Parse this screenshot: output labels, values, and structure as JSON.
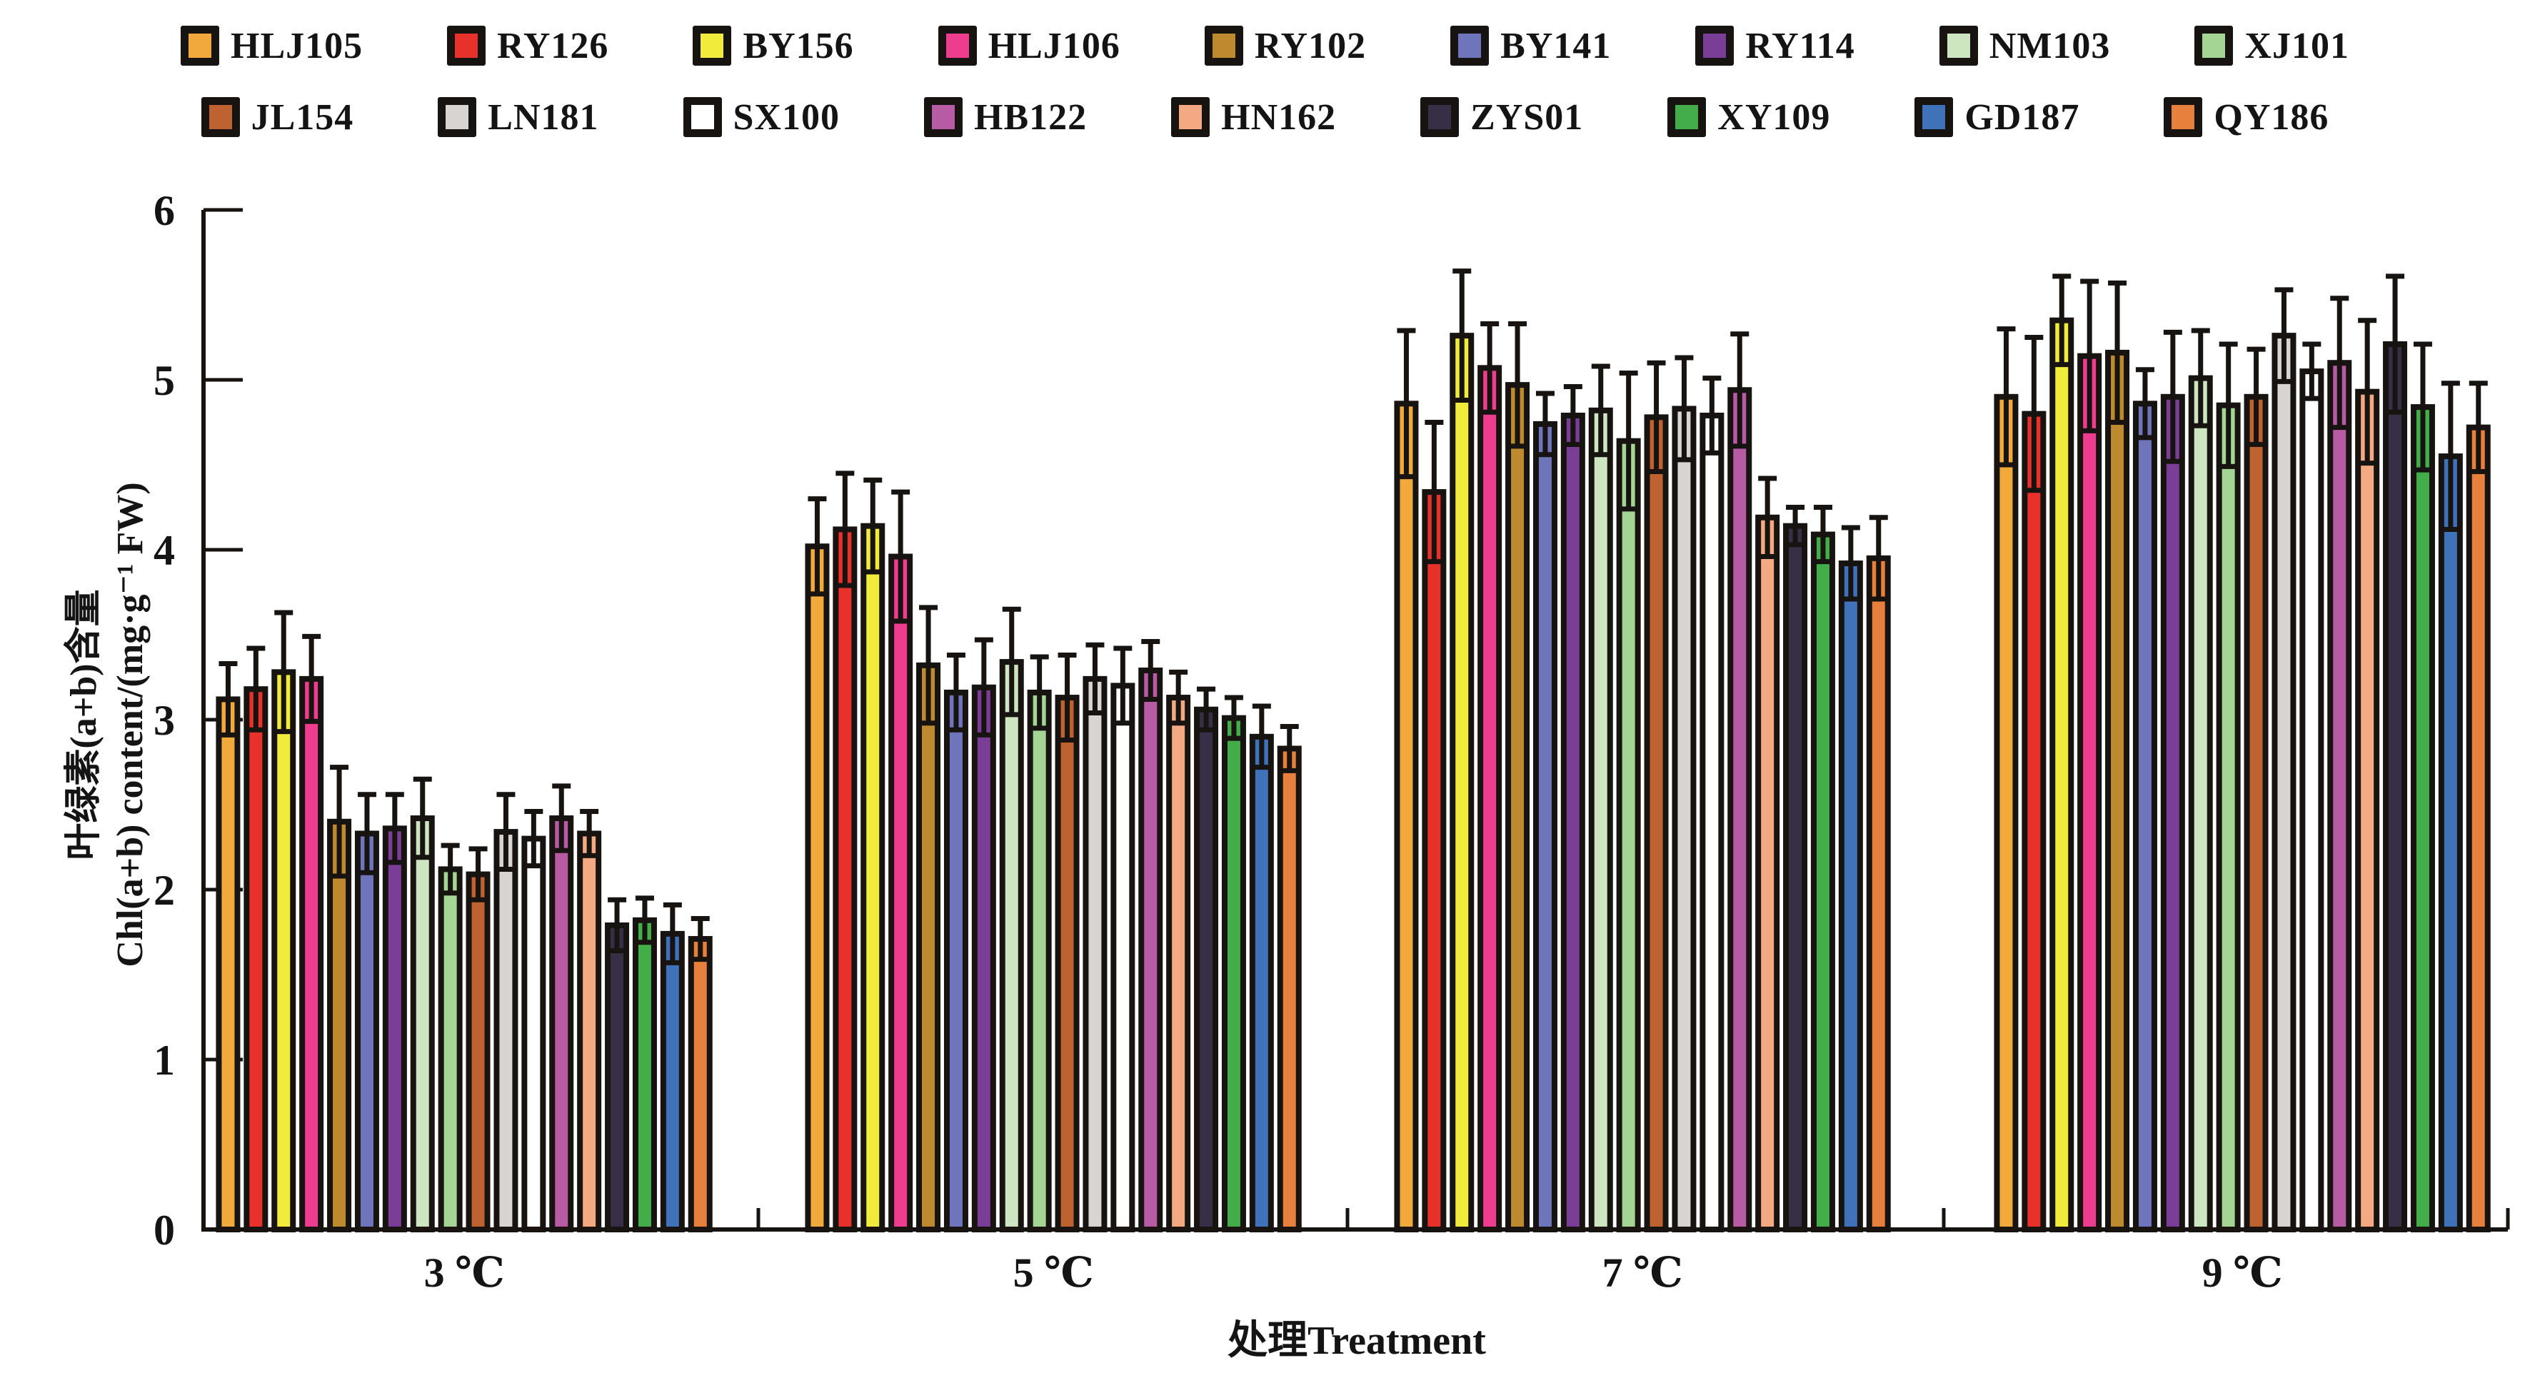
{
  "figure": {
    "background": "#FFFFFF",
    "ink": "#171310"
  },
  "legend": {
    "rows": [
      [
        "HLJ105",
        "RY126",
        "BY156",
        "HLJ106",
        "RY102",
        "BY141",
        "RY114",
        "NM103",
        "XJ101"
      ],
      [
        "JL154",
        "LN181",
        "SX100",
        "HB122",
        "HN162",
        "ZYS01",
        "XY109",
        "GD187",
        "QY186"
      ]
    ]
  },
  "axes": {
    "y_title_cn": "叶绿素(a+b)含量",
    "y_title_en": "Chl(a+b) content/(mg·g⁻¹ FW)",
    "x_title": "处理Treatment"
  },
  "chart_data": {
    "type": "bar",
    "title": "",
    "xlabel": "处理Treatment",
    "ylabel": "叶绿素(a+b)含量 Chl(a+b) content/(mg·g⁻¹ FW)",
    "categories": [
      "3 ℃",
      "5 ℃",
      "7 ℃",
      "9 ℃"
    ],
    "ylim": [
      0,
      6
    ],
    "yticks": [
      0,
      1,
      2,
      3,
      4,
      5,
      6
    ],
    "grid": false,
    "legend_position": "top",
    "error_bars": "symmetric",
    "series": [
      {
        "name": "HLJ105",
        "color": "#F2A93B",
        "values": [
          3.12,
          4.02,
          4.86,
          4.9
        ],
        "errors": [
          0.21,
          0.28,
          0.43,
          0.4
        ]
      },
      {
        "name": "RY126",
        "color": "#E8312B",
        "values": [
          3.18,
          4.12,
          4.34,
          4.8
        ],
        "errors": [
          0.24,
          0.33,
          0.41,
          0.45
        ]
      },
      {
        "name": "BY156",
        "color": "#F1EB3C",
        "values": [
          3.28,
          4.14,
          5.26,
          5.35
        ],
        "errors": [
          0.35,
          0.27,
          0.38,
          0.26
        ]
      },
      {
        "name": "HLJ106",
        "color": "#EE3D8E",
        "values": [
          3.24,
          3.96,
          5.07,
          5.14
        ],
        "errors": [
          0.25,
          0.38,
          0.26,
          0.44
        ]
      },
      {
        "name": "RY102",
        "color": "#BE8A2F",
        "values": [
          2.4,
          3.32,
          4.97,
          5.16
        ],
        "errors": [
          0.32,
          0.34,
          0.36,
          0.41
        ]
      },
      {
        "name": "BY141",
        "color": "#6F75BA",
        "values": [
          2.33,
          3.16,
          4.74,
          4.86
        ],
        "errors": [
          0.23,
          0.22,
          0.18,
          0.2
        ]
      },
      {
        "name": "RY114",
        "color": "#7B3E97",
        "values": [
          2.36,
          3.19,
          4.79,
          4.9
        ],
        "errors": [
          0.2,
          0.28,
          0.17,
          0.38
        ]
      },
      {
        "name": "NM103",
        "color": "#CDE6C1",
        "values": [
          2.42,
          3.34,
          4.82,
          5.01
        ],
        "errors": [
          0.23,
          0.31,
          0.26,
          0.28
        ]
      },
      {
        "name": "XJ101",
        "color": "#A5D594",
        "values": [
          2.12,
          3.16,
          4.64,
          4.85
        ],
        "errors": [
          0.14,
          0.21,
          0.4,
          0.36
        ]
      },
      {
        "name": "JL154",
        "color": "#BD6230",
        "values": [
          2.09,
          3.13,
          4.78,
          4.9
        ],
        "errors": [
          0.15,
          0.25,
          0.32,
          0.28
        ]
      },
      {
        "name": "LN181",
        "color": "#D8D4D1",
        "values": [
          2.34,
          3.24,
          4.83,
          5.26
        ],
        "errors": [
          0.22,
          0.2,
          0.3,
          0.27
        ]
      },
      {
        "name": "SX100",
        "color": "#FFFFFF",
        "values": [
          2.3,
          3.2,
          4.79,
          5.05
        ],
        "errors": [
          0.16,
          0.22,
          0.22,
          0.16
        ]
      },
      {
        "name": "HB122",
        "color": "#B75BA5",
        "values": [
          2.42,
          3.29,
          4.94,
          5.1
        ],
        "errors": [
          0.19,
          0.17,
          0.33,
          0.38
        ]
      },
      {
        "name": "HN162",
        "color": "#F3AA82",
        "values": [
          2.33,
          3.13,
          4.19,
          4.93
        ],
        "errors": [
          0.13,
          0.15,
          0.23,
          0.42
        ]
      },
      {
        "name": "ZYS01",
        "color": "#382F46",
        "values": [
          1.79,
          3.06,
          4.14,
          5.21
        ],
        "errors": [
          0.15,
          0.12,
          0.11,
          0.4
        ]
      },
      {
        "name": "XY109",
        "color": "#43AD49",
        "values": [
          1.82,
          3.01,
          4.09,
          4.84
        ],
        "errors": [
          0.13,
          0.12,
          0.16,
          0.37
        ]
      },
      {
        "name": "GD187",
        "color": "#3F72B8",
        "values": [
          1.74,
          2.9,
          3.92,
          4.55
        ],
        "errors": [
          0.17,
          0.18,
          0.21,
          0.43
        ]
      },
      {
        "name": "QY186",
        "color": "#E77F3D",
        "values": [
          1.71,
          2.83,
          3.95,
          4.72
        ],
        "errors": [
          0.12,
          0.13,
          0.24,
          0.26
        ]
      }
    ]
  }
}
